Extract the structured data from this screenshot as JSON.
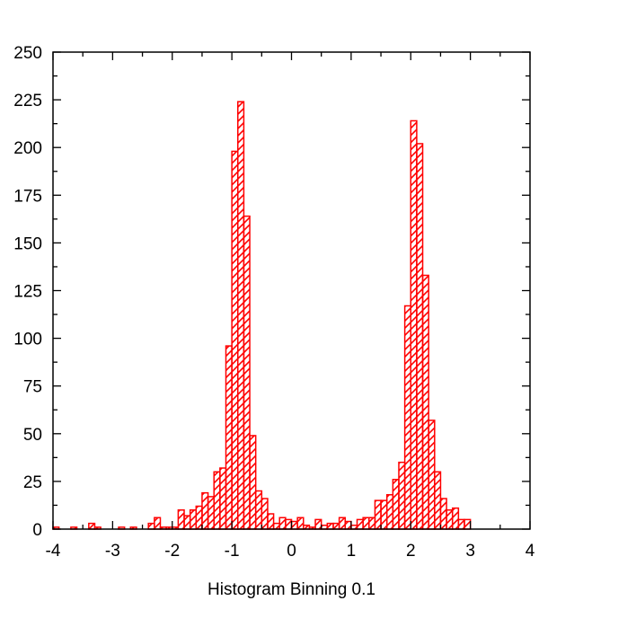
{
  "chart_data": {
    "type": "bar",
    "title": "",
    "xlabel": "Histogram Binning 0.1",
    "ylabel": "",
    "xlim": [
      -4,
      4
    ],
    "ylim": [
      0,
      250
    ],
    "bin_width": 0.1,
    "x_ticks": [
      -4,
      -3,
      -2,
      -1,
      0,
      1,
      2,
      3,
      4
    ],
    "y_ticks": [
      0,
      25,
      50,
      75,
      100,
      125,
      150,
      175,
      200,
      225,
      250
    ],
    "x_tick_labels": [
      "-4",
      "-3",
      "-2",
      "-1",
      "0",
      "1",
      "2",
      "3",
      "4"
    ],
    "y_tick_labels": [
      "0",
      "25",
      "50",
      "75",
      "100",
      "125",
      "150",
      "175",
      "200",
      "225",
      "250"
    ],
    "grid": false,
    "bar_style": "red hatched outline",
    "colors": {
      "bar": "#ff0000",
      "axis": "#000000"
    },
    "bins": [
      {
        "x": -4.0,
        "count": 1
      },
      {
        "x": -3.7,
        "count": 1
      },
      {
        "x": -3.4,
        "count": 3
      },
      {
        "x": -3.3,
        "count": 1
      },
      {
        "x": -2.9,
        "count": 1
      },
      {
        "x": -2.7,
        "count": 1
      },
      {
        "x": -2.4,
        "count": 3
      },
      {
        "x": -2.3,
        "count": 6
      },
      {
        "x": -2.2,
        "count": 1
      },
      {
        "x": -2.1,
        "count": 1
      },
      {
        "x": -2.0,
        "count": 1
      },
      {
        "x": -1.9,
        "count": 10
      },
      {
        "x": -1.8,
        "count": 7
      },
      {
        "x": -1.7,
        "count": 10
      },
      {
        "x": -1.6,
        "count": 12
      },
      {
        "x": -1.5,
        "count": 19
      },
      {
        "x": -1.4,
        "count": 17
      },
      {
        "x": -1.3,
        "count": 30
      },
      {
        "x": -1.2,
        "count": 32
      },
      {
        "x": -1.1,
        "count": 96
      },
      {
        "x": -1.0,
        "count": 198
      },
      {
        "x": -0.9,
        "count": 224
      },
      {
        "x": -0.8,
        "count": 164
      },
      {
        "x": -0.7,
        "count": 49
      },
      {
        "x": -0.6,
        "count": 20
      },
      {
        "x": -0.5,
        "count": 16
      },
      {
        "x": -0.4,
        "count": 8
      },
      {
        "x": -0.3,
        "count": 3
      },
      {
        "x": -0.2,
        "count": 6
      },
      {
        "x": -0.1,
        "count": 5
      },
      {
        "x": 0.0,
        "count": 4
      },
      {
        "x": 0.1,
        "count": 6
      },
      {
        "x": 0.2,
        "count": 2
      },
      {
        "x": 0.3,
        "count": 1
      },
      {
        "x": 0.4,
        "count": 5
      },
      {
        "x": 0.5,
        "count": 2
      },
      {
        "x": 0.6,
        "count": 3
      },
      {
        "x": 0.7,
        "count": 3
      },
      {
        "x": 0.8,
        "count": 6
      },
      {
        "x": 0.9,
        "count": 4
      },
      {
        "x": 1.0,
        "count": 2
      },
      {
        "x": 1.1,
        "count": 5
      },
      {
        "x": 1.2,
        "count": 6
      },
      {
        "x": 1.3,
        "count": 6
      },
      {
        "x": 1.4,
        "count": 15
      },
      {
        "x": 1.5,
        "count": 15
      },
      {
        "x": 1.6,
        "count": 18
      },
      {
        "x": 1.7,
        "count": 26
      },
      {
        "x": 1.8,
        "count": 35
      },
      {
        "x": 1.9,
        "count": 117
      },
      {
        "x": 2.0,
        "count": 214
      },
      {
        "x": 2.1,
        "count": 202
      },
      {
        "x": 2.2,
        "count": 133
      },
      {
        "x": 2.3,
        "count": 57
      },
      {
        "x": 2.4,
        "count": 30
      },
      {
        "x": 2.5,
        "count": 16
      },
      {
        "x": 2.6,
        "count": 10
      },
      {
        "x": 2.7,
        "count": 11
      },
      {
        "x": 2.8,
        "count": 5
      },
      {
        "x": 2.9,
        "count": 5
      }
    ]
  }
}
